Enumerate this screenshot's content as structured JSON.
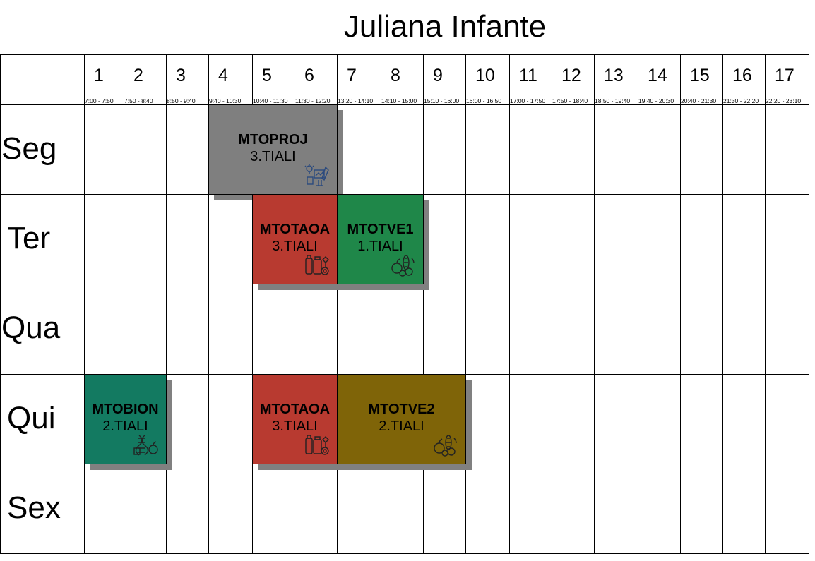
{
  "title": "Juliana Infante",
  "periods": [
    {
      "num": "1",
      "time": "7:00 - 7:50"
    },
    {
      "num": "2",
      "time": "7:50 - 8:40"
    },
    {
      "num": "3",
      "time": "8:50 - 9:40"
    },
    {
      "num": "4",
      "time": "9:40 - 10:30"
    },
    {
      "num": "5",
      "time": "10:40 - 11:30"
    },
    {
      "num": "6",
      "time": "11:30 - 12:20"
    },
    {
      "num": "7",
      "time": "13:20 - 14:10"
    },
    {
      "num": "8",
      "time": "14:10 - 15:00"
    },
    {
      "num": "9",
      "time": "15:10 - 16:00"
    },
    {
      "num": "10",
      "time": "16:00 - 16:50"
    },
    {
      "num": "11",
      "time": "17:00 - 17:50"
    },
    {
      "num": "12",
      "time": "17:50 - 18:40"
    },
    {
      "num": "13",
      "time": "18:50 - 19:40"
    },
    {
      "num": "14",
      "time": "19:40 - 20:30"
    },
    {
      "num": "15",
      "time": "20:40 - 21:30"
    },
    {
      "num": "16",
      "time": "21:30 - 22:20"
    },
    {
      "num": "17",
      "time": "22:20 - 23:10"
    }
  ],
  "days": [
    "Seg",
    "Ter",
    "Qua",
    "Qui",
    "Sex"
  ],
  "classes": [
    {
      "code": "MTOPROJ",
      "group": "3.TIALI",
      "color": "#7f7f7f",
      "icon": "project-design-icon",
      "day": 0,
      "start": 4,
      "end": 6
    },
    {
      "code": "MTOTAOA",
      "group": "3.TIALI",
      "color": "#b83a30",
      "icon": "food-processing-icon",
      "day": 1,
      "start": 5,
      "end": 6
    },
    {
      "code": "MTOTVE1",
      "group": "1.TIALI",
      "color": "#1f8749",
      "icon": "fruits-vegetables-icon",
      "day": 1,
      "start": 7,
      "end": 8
    },
    {
      "code": "MTOBION",
      "group": "2.TIALI",
      "color": "#137a61",
      "icon": "biotech-food-icon",
      "day": 3,
      "start": 1,
      "end": 2
    },
    {
      "code": "MTOTAOA",
      "group": "3.TIALI",
      "color": "#b83a30",
      "icon": "food-processing-icon",
      "day": 3,
      "start": 5,
      "end": 6
    },
    {
      "code": "MTOTVE2",
      "group": "2.TIALI",
      "color": "#7f6408",
      "icon": "fruits-vegetables-icon",
      "day": 3,
      "start": 7,
      "end": 9
    }
  ]
}
